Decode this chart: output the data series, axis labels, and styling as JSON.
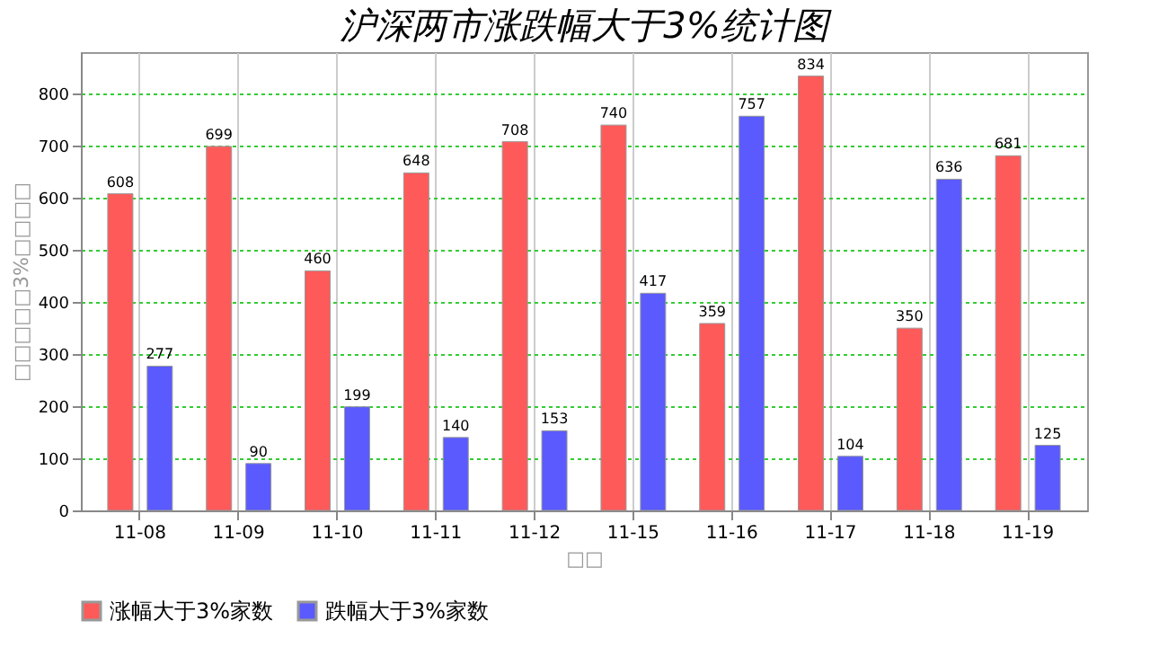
{
  "chart_data": {
    "type": "bar",
    "title": "沪深两市涨跌幅大于3%统计图",
    "xlabel": "□□",
    "ylabel": "□□□□□3%□□□□",
    "categories": [
      "11-08",
      "11-09",
      "11-10",
      "11-11",
      "11-12",
      "11-15",
      "11-16",
      "11-17",
      "11-18",
      "11-19"
    ],
    "series": [
      {
        "name": "涨幅大于3%家数",
        "color": "#ff5a5a",
        "values": [
          608,
          699,
          460,
          648,
          708,
          740,
          359,
          834,
          350,
          681
        ]
      },
      {
        "name": "跌幅大于3%家数",
        "color": "#5a5aff",
        "values": [
          277,
          90,
          199,
          140,
          153,
          417,
          757,
          104,
          636,
          125
        ]
      }
    ],
    "ylim": [
      0,
      880
    ],
    "yticks": [
      0,
      100,
      200,
      300,
      400,
      500,
      600,
      700,
      800
    ],
    "grid": true,
    "legend": "bottom",
    "data_labels": true
  }
}
